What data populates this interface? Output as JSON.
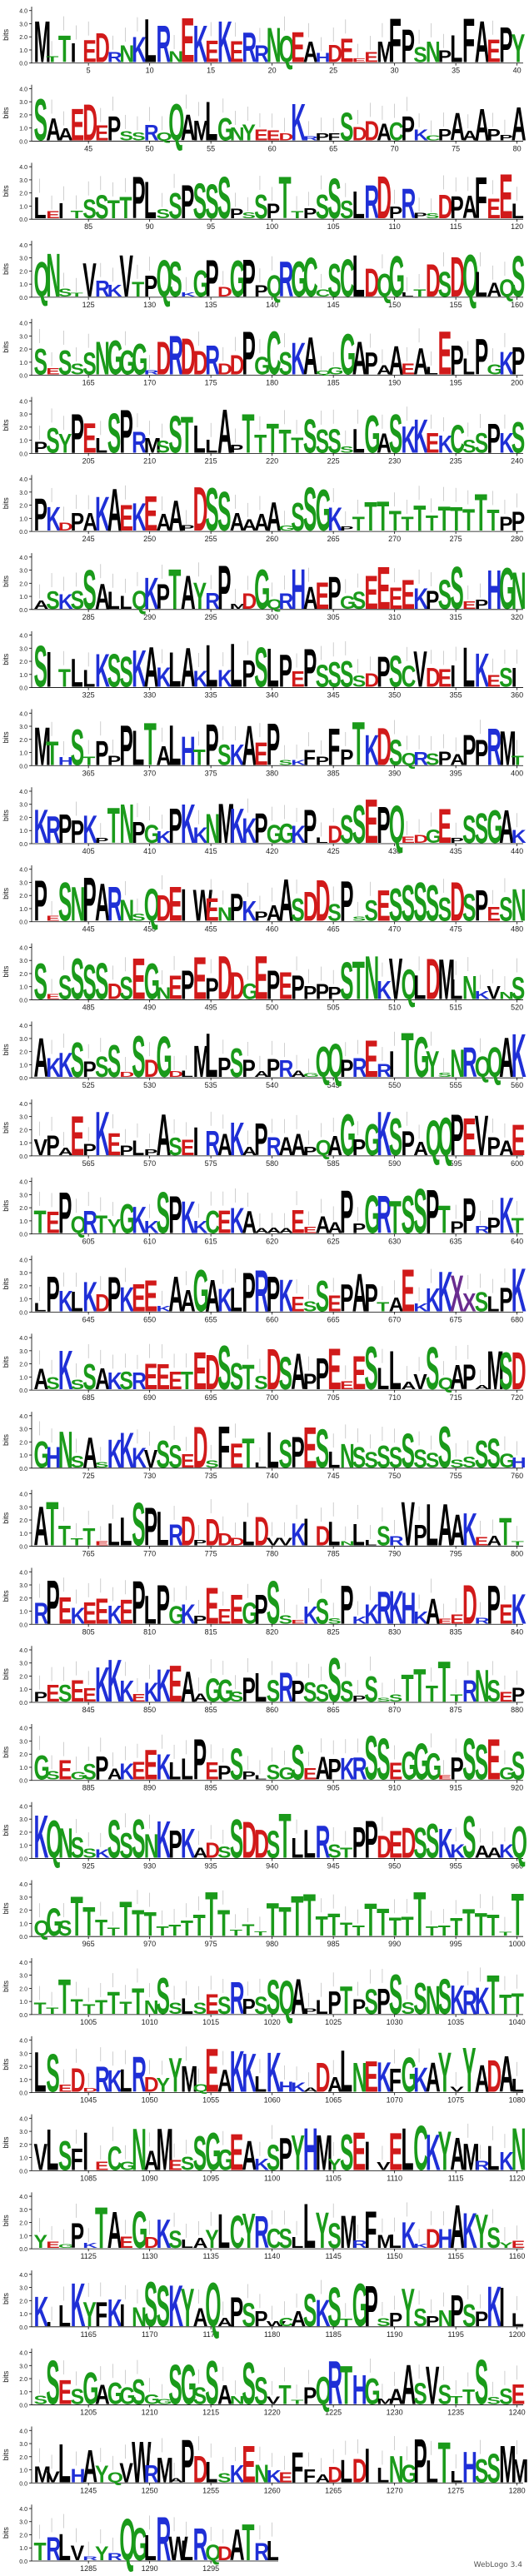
{
  "chart_data": {
    "type": "sequence-logo",
    "ylabel": "bits",
    "yticks": [
      "0.0",
      "1.0",
      "2.0",
      "3.0",
      "4.0"
    ],
    "ylim": [
      0,
      4.3
    ],
    "tick_step": 5,
    "positions_per_row": 40,
    "num_rows": 33,
    "total_positions": 1300,
    "rows": [
      {
        "row": 1,
        "start": 1,
        "end": 40,
        "ticks": [
          5,
          10,
          15,
          20,
          25,
          30,
          35,
          40
        ],
        "seq": "MTTIEDRNKLRNEKEKERRNQEAHDEEEMFPSNPLFAEPYKT"
      },
      {
        "row": 2,
        "start": 41,
        "end": 80,
        "ticks": [
          45,
          50,
          55,
          60,
          65,
          70,
          75,
          80
        ],
        "seq": "SAAEDEPSSRQQAMLGNYEEDKRPFSDDACPKCPAAAPPA"
      },
      {
        "row": 3,
        "start": 81,
        "end": 120,
        "ticks": [
          85,
          90,
          95,
          100,
          105,
          110,
          115,
          120
        ],
        "seq": "LEITSSTTPLSSPSSSPSSPTTPSSSLRDPRPSDPAFEELPK"
      },
      {
        "row": 4,
        "start": 121,
        "end": 160,
        "ticks": [
          125,
          130,
          135,
          140,
          145,
          150,
          155,
          160
        ],
        "seq": "QNSTVRKVTPQSKGPDGPPQRGCCSCLDQGLTDSDQLAQS"
      },
      {
        "row": 5,
        "start": 161,
        "end": 200,
        "ticks": [
          165,
          170,
          175,
          180,
          185,
          190,
          195,
          200
        ],
        "seq": "SESSSNGGGRDRDDRDDPGCSKAQGGAPAAEALEPLPGKP"
      },
      {
        "row": 6,
        "start": 201,
        "end": 240,
        "ticks": [
          205,
          210,
          215,
          220,
          225,
          230,
          235,
          240
        ],
        "seq": "PSYPELSPRMSSTLLAPTTTTTSSSSLGASKKEKCSSPKS"
      },
      {
        "row": 7,
        "start": 241,
        "end": 280,
        "ticks": [
          245,
          250,
          255,
          260,
          265,
          270,
          275,
          280
        ],
        "seq": "PKDPAKAEKEAAPDSSAAAAGSSGKPTTTTTTTTTTTTPPSL"
      },
      {
        "row": 8,
        "start": 281,
        "end": 320,
        "ticks": [
          285,
          290,
          295,
          300,
          305,
          310,
          315,
          320
        ],
        "seq": "ASKSSALLQKPTAYRPMDGQRHAEPGSEEEEKPSSEPHGN"
      },
      {
        "row": 9,
        "start": 321,
        "end": 360,
        "ticks": [
          325,
          330,
          335,
          340,
          345,
          350,
          355,
          360
        ],
        "seq": "SITLLKSSKAKLAKLKLPSLPEPSSSSDPSCVDEILKE"
      },
      {
        "row": 10,
        "start": 361,
        "end": 400,
        "ticks": [
          365,
          370,
          375,
          380,
          385,
          390,
          395,
          400
        ],
        "seq": "MTHSTPPPLTALHTPSKAEPSKFPFPTKDSQRSPAPPR"
      },
      {
        "row": 11,
        "start": 401,
        "end": 440,
        "ticks": [
          405,
          410,
          415,
          420,
          425,
          430,
          435,
          440
        ],
        "seq": "KRPPKPTNPGKPKKNMKKPGGKPLDSSEPQEDGEPSSGAKS"
      },
      {
        "row": 12,
        "start": 441,
        "end": 480,
        "ticks": [
          445,
          450,
          455,
          460,
          465,
          470,
          475,
          480
        ],
        "seq": "PESNPARNSQDEIWENPKPAASDDSPSSESSSSSDS"
      },
      {
        "row": 13,
        "start": 481,
        "end": 520,
        "ticks": [
          485,
          490,
          495,
          500,
          505,
          510,
          515,
          520
        ],
        "seq": "SESSSSDSEGNEPEPDDGEPEPPPPSTNKVQLDMLNKVN"
      },
      {
        "row": 14,
        "start": 521,
        "end": 560,
        "ticks": [
          525,
          530,
          535,
          540,
          545,
          550,
          555,
          560
        ],
        "seq": "AKKSPSSDSDGDLMLPSPAPRAGQQPRERITGYSNRQQ"
      },
      {
        "row": 15,
        "start": 561,
        "end": 600,
        "ticks": [
          565,
          570,
          575,
          580,
          585,
          590,
          595,
          600
        ],
        "seq": "VPAEPKEPLPASEIRAKAPRAAPQAGPGKSPAQQPE"
      },
      {
        "row": 16,
        "start": 601,
        "end": 640,
        "ticks": [
          605,
          610,
          615,
          620,
          625,
          630,
          635,
          640
        ],
        "seq": "TEPQRTYGKKSPKKCEKAAAAEEAAPPGRTSSPTPPRPK"
      },
      {
        "row": 17,
        "start": 641,
        "end": 680,
        "ticks": [
          645,
          650,
          655,
          660,
          665,
          670,
          675,
          680
        ],
        "seq": "LPKLKDPKEEKAAGAKLPRPKESSEPAPTAEKKKXXS"
      },
      {
        "row": 18,
        "start": 681,
        "end": 720,
        "ticks": [
          685,
          690,
          695,
          700,
          705,
          710,
          715,
          720
        ],
        "seq": "ASKSSAKSREEETEDSSTSDSAPPEEESLLAVSQAPAMSD"
      },
      {
        "row": 19,
        "start": 721,
        "end": 760,
        "ticks": [
          725,
          730,
          735,
          740,
          745,
          750,
          755,
          760
        ],
        "seq": "GHNSASKKKVSSEDSFETLLSPESLNSSSSSSSSSSSS"
      },
      {
        "row": 20,
        "start": 761,
        "end": 800,
        "ticks": [
          765,
          770,
          775,
          780,
          785,
          790,
          795,
          800
        ],
        "seq": "ATTTTELLSPLRDPDDDLDVVKIDLNLLSRVPLAAKE"
      },
      {
        "row": 21,
        "start": 801,
        "end": 840,
        "ticks": [
          805,
          810,
          815,
          820,
          825,
          830,
          835,
          840
        ],
        "seq": "RPEKEEKEPLPGKPEEEGPSSEKSSPKKRKHKAEED"
      },
      {
        "row": 22,
        "start": 841,
        "end": 880,
        "ticks": [
          845,
          850,
          855,
          860,
          865,
          870,
          875,
          880
        ],
        "seq": "PESEEKKKEKKEAAGGSPLSRPSSSSPSSSTTTTTRNSE"
      },
      {
        "row": 23,
        "start": 881,
        "end": 920,
        "ticks": [
          885,
          890,
          895,
          900,
          905,
          910,
          915,
          920
        ],
        "seq": "GSEGSPAKEEKLLPEPSPLSGSEAPKRSSEGGGEPSSE"
      },
      {
        "row": 24,
        "start": 921,
        "end": 960,
        "ticks": [
          925,
          930,
          935,
          940,
          945,
          950,
          955,
          960
        ],
        "seq": "KQNSSKSSSNKPKADSSDDSTLLRSTPPDEDSSKKSAA"
      },
      {
        "row": 25,
        "start": 961,
        "end": 1000,
        "ticks": [
          965,
          970,
          975,
          980,
          985,
          990,
          995,
          1000
        ],
        "seq": "QGSTTTTTTTTTTTTTTTTTTTTTTTTTTTTTTTTTTTTT"
      },
      {
        "row": 26,
        "start": 1001,
        "end": 1040,
        "ticks": [
          1005,
          1010,
          1015,
          1020,
          1025,
          1030,
          1035,
          1040
        ],
        "seq": "TTTTTTTTTNSSLSESRPSSQAPLPTPSPSSSNSKRK"
      },
      {
        "row": 27,
        "start": 1041,
        "end": 1080,
        "ticks": [
          1045,
          1050,
          1055,
          1060,
          1065,
          1070,
          1075,
          1080
        ],
        "seq": "LSEDDRKLRDYYMQEAKKLKHKADALNEKFGKAYVYADA"
      },
      {
        "row": 28,
        "start": 1081,
        "end": 1120,
        "ticks": [
          1085,
          1090,
          1095,
          1100,
          1105,
          1110,
          1115,
          1120
        ],
        "seq": "VLSFIECGNAMESSGGEAKSPYHMYSEIVELCKYAMRLKN"
      },
      {
        "row": 29,
        "start": 1121,
        "end": 1160,
        "ticks": [
          1125,
          1130,
          1135,
          1140,
          1145,
          1150,
          1155,
          1160
        ],
        "seq": "YEGPKTAEGDKSLAYLCYRCSLLYSMRFMLKKDHAKYS"
      },
      {
        "row": 30,
        "start": 1161,
        "end": 1200,
        "ticks": [
          1165,
          1170,
          1175,
          1180,
          1185,
          1190,
          1195,
          1200
        ],
        "seq": "KILKYFKINSSKYAQAPSPWCASKSTGPSPYSPNPSP"
      },
      {
        "row": 31,
        "start": 1201,
        "end": 1240,
        "ticks": [
          1205,
          1210,
          1215,
          1220,
          1225,
          1230,
          1235,
          1240
        ],
        "seq": "SSESGAGGSGGSGSSANSSVTTPQRTHGMAASVSTTS"
      },
      {
        "row": 32,
        "start": 1241,
        "end": 1280,
        "ticks": [
          1245,
          1250,
          1255,
          1260,
          1265,
          1270,
          1275,
          1280
        ],
        "seq": "MVLHAYQVWRMAPDLSKENKEFFADLDILNGPLTLHSSM"
      },
      {
        "row": 33,
        "start": 1281,
        "end": 1300,
        "ticks": [
          1285,
          1290,
          1295
        ],
        "seq": "TRLVRYRQGLRWLRQDA"
      }
    ],
    "colors": {
      "polar": "#1a9a1a",
      "basic": "#1f2fd6",
      "acidic": "#d11a1a",
      "hydrophobic": "#000000",
      "neutral": "#6a2c8e"
    }
  },
  "footer": {
    "label": "WebLogo 3.4"
  }
}
